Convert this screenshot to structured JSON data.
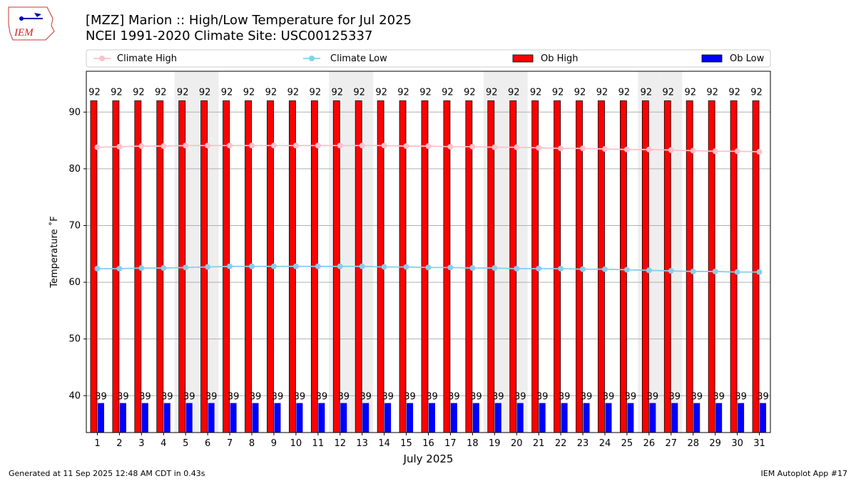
{
  "title_line1": "[MZZ] Marion :: High/Low Temperature for Jul 2025",
  "title_line2": "NCEI 1991-2020 Climate Site: USC00125337",
  "logo_text": "IEM",
  "footer_left": "Generated at 11 Sep 2025 12:48 AM CDT in 0.43s",
  "footer_right": "IEM Autoplot App #17",
  "chart_data": {
    "type": "bar",
    "xlabel": "July 2025",
    "ylabel": "Temperature ˚F",
    "ylim": [
      33.5,
      97.2
    ],
    "yticks": [
      40,
      50,
      60,
      70,
      80,
      90
    ],
    "grid": "horizontal",
    "legend_placement": "top",
    "weekend_shading_days": [
      5,
      6,
      12,
      13,
      19,
      20,
      26,
      27
    ],
    "categories": [
      "1",
      "2",
      "3",
      "4",
      "5",
      "6",
      "7",
      "8",
      "9",
      "10",
      "11",
      "12",
      "13",
      "14",
      "15",
      "16",
      "17",
      "18",
      "19",
      "20",
      "21",
      "22",
      "23",
      "24",
      "25",
      "26",
      "27",
      "28",
      "29",
      "30",
      "31"
    ],
    "series": [
      {
        "name": "Ob High",
        "kind": "bar",
        "color": "#ff0000",
        "values": [
          92,
          92,
          92,
          92,
          92,
          92,
          92,
          92,
          92,
          92,
          92,
          92,
          92,
          92,
          92,
          92,
          92,
          92,
          92,
          92,
          92,
          92,
          92,
          92,
          92,
          92,
          92,
          92,
          92,
          92,
          92
        ],
        "labels": [
          "92",
          "92",
          "92",
          "92",
          "92",
          "92",
          "92",
          "92",
          "92",
          "92",
          "92",
          "92",
          "92",
          "92",
          "92",
          "92",
          "92",
          "92",
          "92",
          "92",
          "92",
          "92",
          "92",
          "92",
          "92",
          "92",
          "92",
          "92",
          "92",
          "92",
          "92"
        ]
      },
      {
        "name": "Ob Low",
        "kind": "bar",
        "color": "#0000ff",
        "values": [
          38.7,
          38.7,
          38.7,
          38.7,
          38.7,
          38.7,
          38.7,
          38.7,
          38.7,
          38.7,
          38.7,
          38.7,
          38.7,
          38.7,
          38.7,
          38.7,
          38.7,
          38.7,
          38.7,
          38.7,
          38.7,
          38.7,
          38.7,
          38.7,
          38.7,
          38.7,
          38.7,
          38.7,
          38.7,
          38.7,
          38.7
        ],
        "labels": [
          "39",
          "39",
          "39",
          "39",
          "39",
          "39",
          "39",
          "39",
          "39",
          "39",
          "39",
          "39",
          "39",
          "39",
          "39",
          "39",
          "39",
          "39",
          "39",
          "39",
          "39",
          "39",
          "39",
          "39",
          "39",
          "39",
          "39",
          "39",
          "39",
          "39",
          "39"
        ]
      },
      {
        "name": "Climate High",
        "kind": "line",
        "color": "#ffc0cb",
        "values": [
          83.8,
          83.9,
          84.0,
          84.0,
          84.1,
          84.1,
          84.1,
          84.1,
          84.1,
          84.1,
          84.1,
          84.1,
          84.1,
          84.1,
          84.0,
          84.0,
          83.9,
          83.9,
          83.8,
          83.8,
          83.7,
          83.6,
          83.6,
          83.5,
          83.4,
          83.4,
          83.3,
          83.2,
          83.1,
          83.1,
          83.0
        ]
      },
      {
        "name": "Climate Low",
        "kind": "line",
        "color": "#87ceeb",
        "values": [
          62.4,
          62.4,
          62.5,
          62.5,
          62.6,
          62.7,
          62.8,
          62.8,
          62.8,
          62.8,
          62.8,
          62.8,
          62.8,
          62.7,
          62.7,
          62.6,
          62.6,
          62.5,
          62.5,
          62.4,
          62.4,
          62.4,
          62.3,
          62.3,
          62.2,
          62.1,
          62.0,
          61.9,
          61.9,
          61.8,
          61.8
        ]
      }
    ]
  }
}
